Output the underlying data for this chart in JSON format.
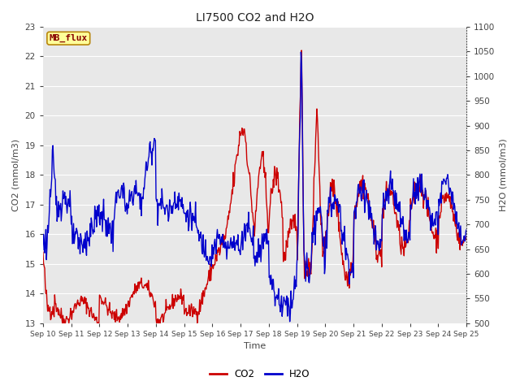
{
  "title": "LI7500 CO2 and H2O",
  "xlabel": "Time",
  "ylabel_left": "CO2 (mmol/m3)",
  "ylabel_right": "H2O (mmol/m3)",
  "co2_ylim": [
    13.0,
    23.0
  ],
  "h2o_ylim": [
    500,
    1100
  ],
  "co2_yticks": [
    13.0,
    14.0,
    15.0,
    16.0,
    17.0,
    18.0,
    19.0,
    20.0,
    21.0,
    22.0,
    23.0
  ],
  "h2o_yticks": [
    500,
    550,
    600,
    650,
    700,
    750,
    800,
    850,
    900,
    950,
    1000,
    1050,
    1100
  ],
  "xtick_labels": [
    "Sep 10",
    "Sep 11",
    "Sep 12",
    "Sep 13",
    "Sep 14",
    "Sep 15",
    "Sep 16",
    "Sep 17",
    "Sep 18",
    "Sep 19",
    "Sep 20",
    "Sep 21",
    "Sep 22",
    "Sep 23",
    "Sep 24",
    "Sep 25"
  ],
  "co2_color": "#cc0000",
  "h2o_color": "#0000cc",
  "bg_color": "#e8e8e8",
  "grid_color": "#ffffff",
  "annotation_text": "MB_flux",
  "annotation_bg": "#ffff99",
  "annotation_border": "#b8860b",
  "annotation_text_color": "#880000",
  "legend_labels": [
    "CO2",
    "H2O"
  ],
  "title_fontsize": 10,
  "axis_fontsize": 8,
  "tick_fontsize": 7.5,
  "linewidth": 1.0
}
